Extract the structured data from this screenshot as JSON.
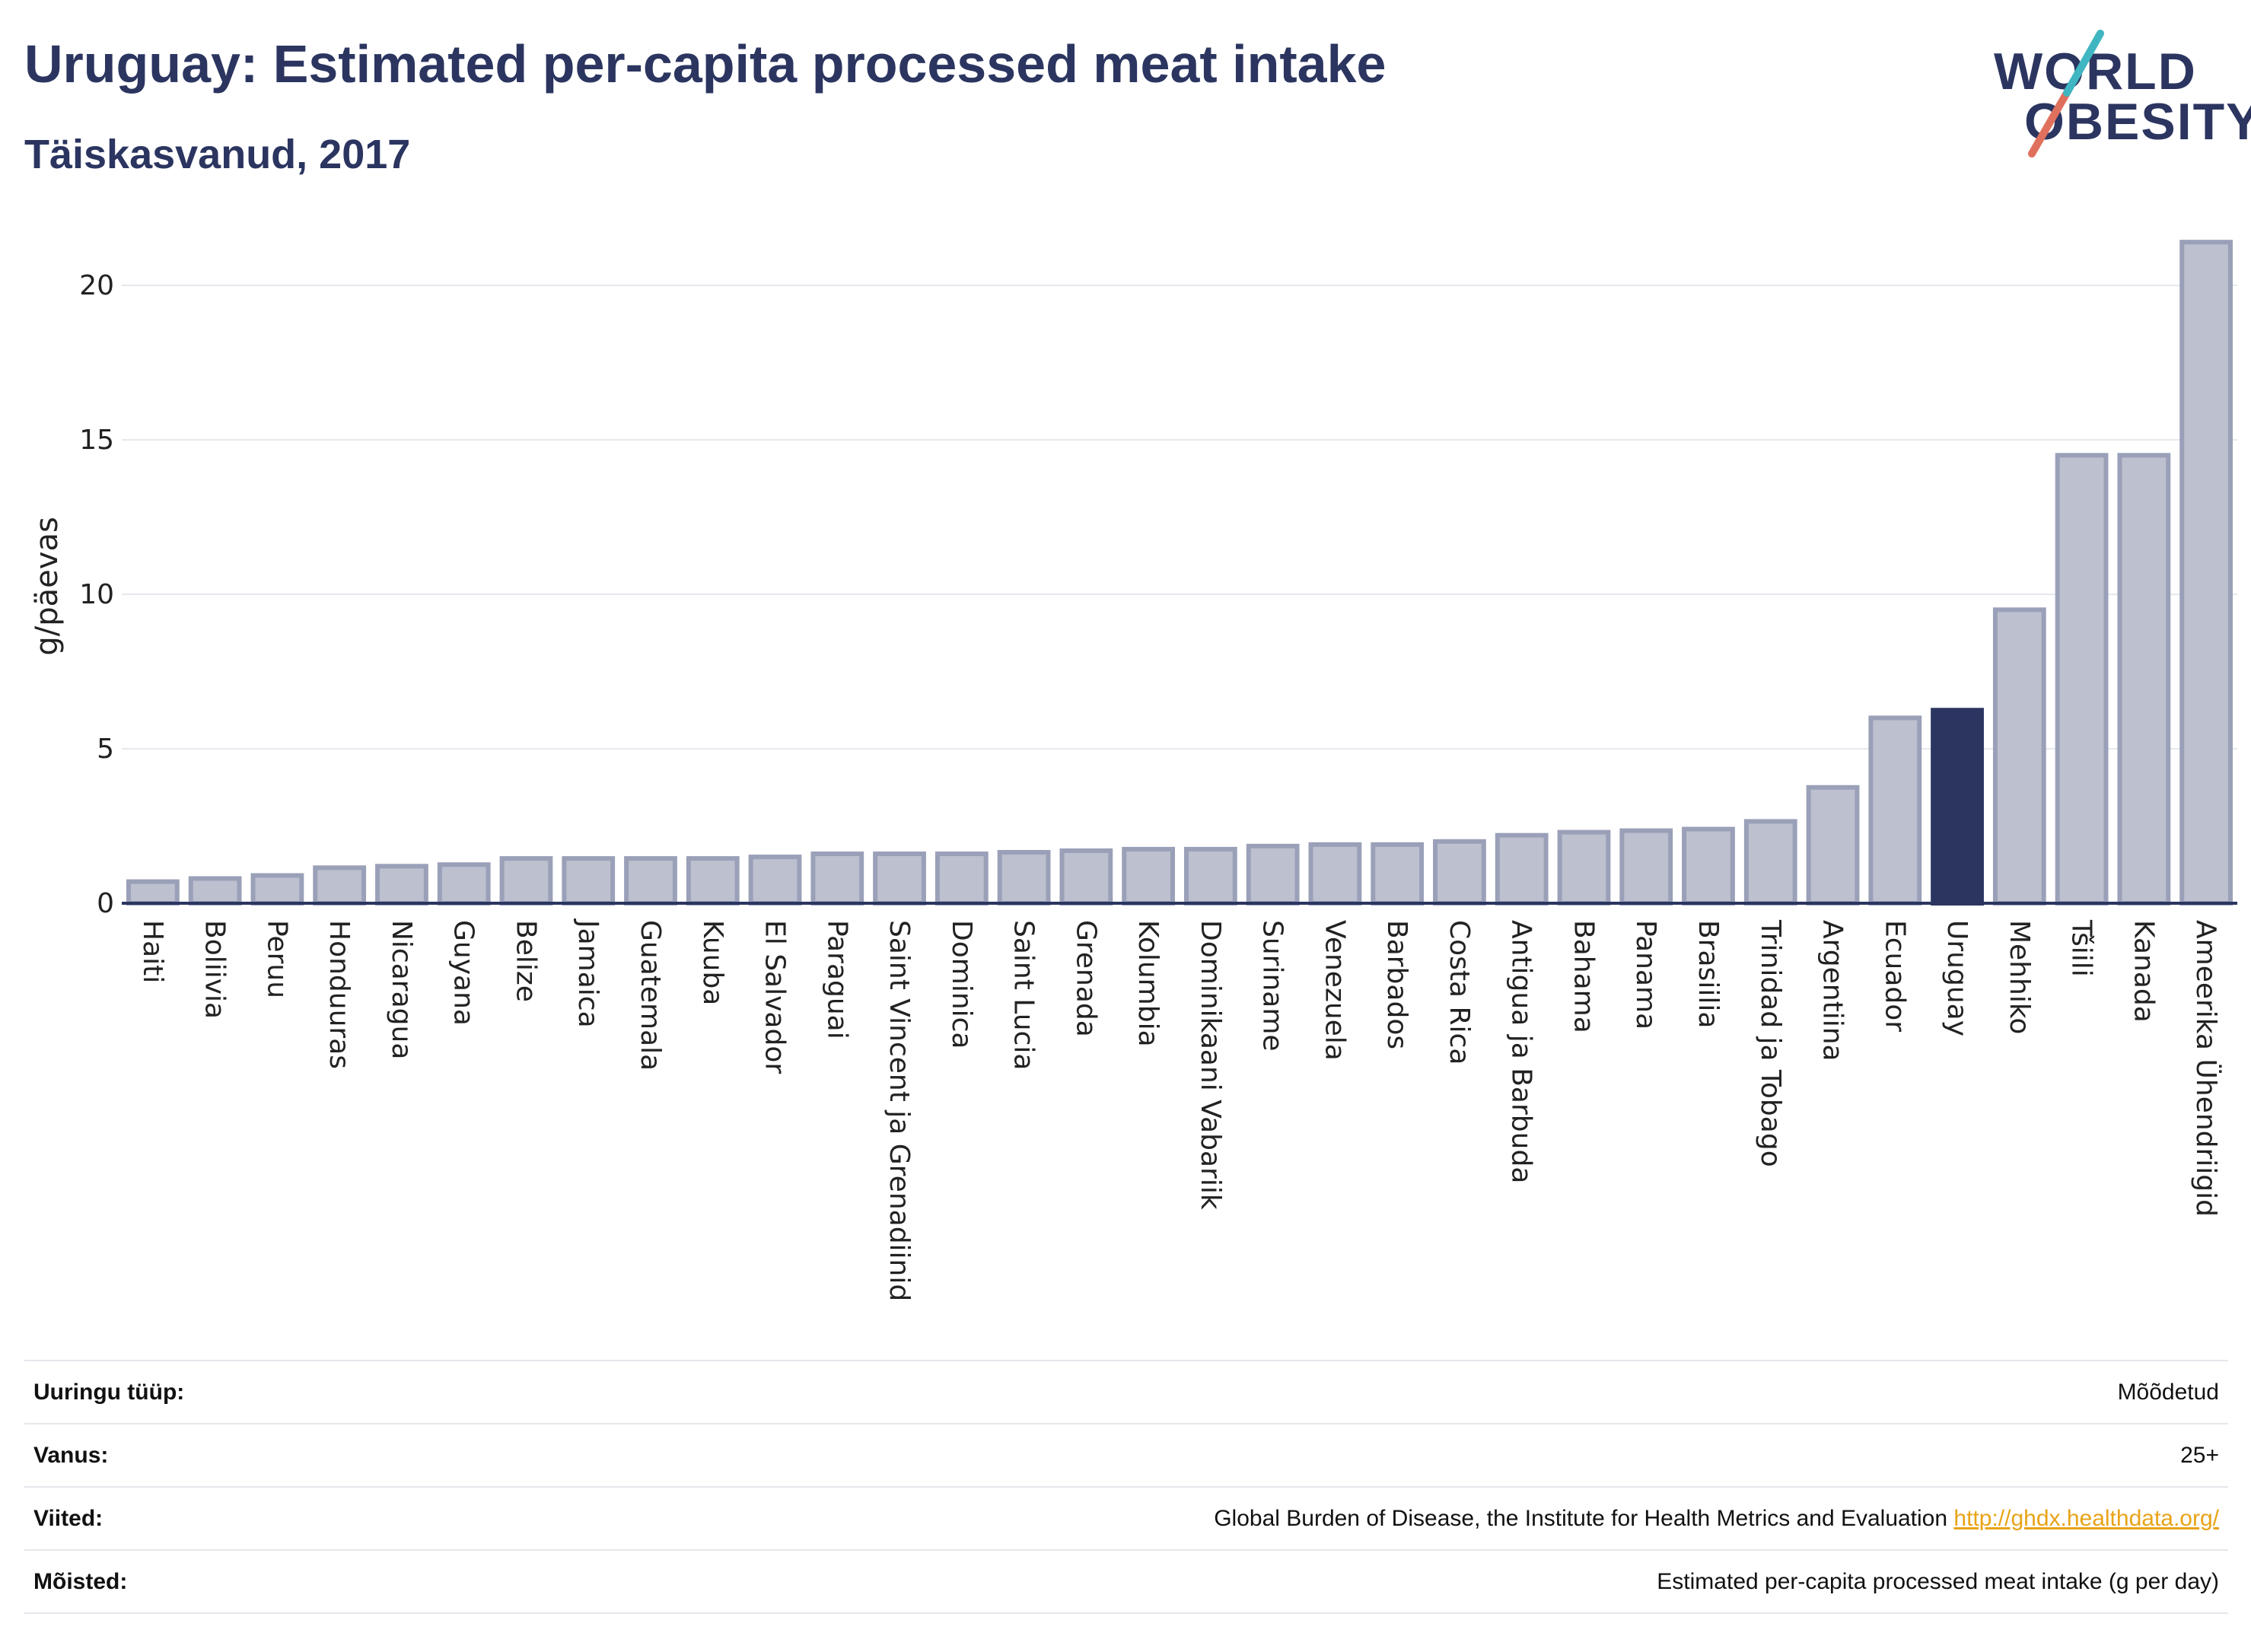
{
  "header": {
    "title": "Uruguay: Estimated per-capita processed meat intake",
    "subtitle": "Täiskasvanud, 2017",
    "logo_line1": "WORLD",
    "logo_line2": "OBESITY"
  },
  "colors": {
    "title": "#2b3560",
    "bar": "#bcc0cf",
    "bar_stroke": "#9aa0b8",
    "highlight": "#2b3560",
    "logo_slash_teal": "#3fb6c1",
    "logo_slash_red": "#e0705e"
  },
  "chart_data": {
    "type": "bar",
    "title": "Uruguay: Estimated per-capita processed meat intake",
    "subtitle": "Täiskasvanud, 2017",
    "xlabel": "",
    "ylabel": "g/päevas",
    "ylim": [
      0,
      22
    ],
    "yticks": [
      0,
      5,
      10,
      15,
      20
    ],
    "grid": true,
    "highlight": "Uruguay",
    "categories": [
      "Haiti",
      "Boliivia",
      "Peruu",
      "Honduuras",
      "Nicaragua",
      "Guyana",
      "Belize",
      "Jamaica",
      "Guatemala",
      "Kuuba",
      "El Salvador",
      "Paraguai",
      "Saint Vincent ja Grenadiinid",
      "Dominica",
      "Saint Lucia",
      "Grenada",
      "Kolumbia",
      "Dominikaani Vabariik",
      "Suriname",
      "Venezuela",
      "Barbados",
      "Costa Rica",
      "Antigua ja Barbuda",
      "Bahama",
      "Panama",
      "Brasiilia",
      "Trinidad ja Tobago",
      "Argentiina",
      "Ecuador",
      "Uruguay",
      "Mehhiko",
      "Tšiili",
      "Kanada",
      "Ameerika Ühendriigid"
    ],
    "values": [
      0.7,
      0.8,
      0.9,
      1.15,
      1.2,
      1.25,
      1.45,
      1.45,
      1.45,
      1.45,
      1.5,
      1.6,
      1.6,
      1.6,
      1.65,
      1.7,
      1.75,
      1.75,
      1.85,
      1.9,
      1.9,
      2.0,
      2.2,
      2.3,
      2.35,
      2.4,
      2.65,
      3.75,
      6.0,
      6.25,
      9.5,
      14.5,
      14.5,
      21.4
    ]
  },
  "meta": [
    {
      "label": "Uuringu tüüp:",
      "value": "Mõõdetud"
    },
    {
      "label": "Vanus:",
      "value": "25+"
    },
    {
      "label": "Viited:",
      "value": "Global Burden of Disease, the Institute for Health Metrics and Evaluation",
      "link": "http://ghdx.healthdata.org/"
    },
    {
      "label": "Mõisted:",
      "value": "Estimated per-capita processed meat intake (g per day)"
    }
  ]
}
